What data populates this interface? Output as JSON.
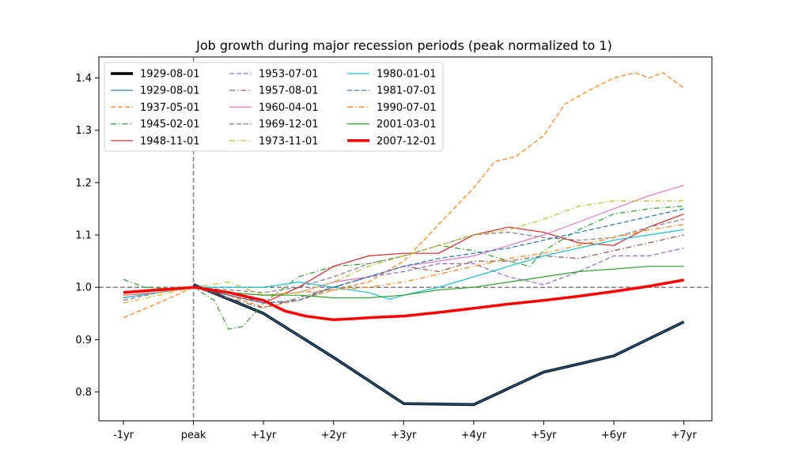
{
  "chart_data": {
    "type": "line",
    "title": "Job growth during major recession periods (peak normalized to 1)",
    "xlabel": "",
    "ylabel": "",
    "x_ticks": [
      {
        "value": -1,
        "label": "-1yr"
      },
      {
        "value": 0,
        "label": "peak"
      },
      {
        "value": 1,
        "label": "+1yr"
      },
      {
        "value": 2,
        "label": "+2yr"
      },
      {
        "value": 3,
        "label": "+3yr"
      },
      {
        "value": 4,
        "label": "+4yr"
      },
      {
        "value": 5,
        "label": "+5yr"
      },
      {
        "value": 6,
        "label": "+6yr"
      },
      {
        "value": 7,
        "label": "+7yr"
      }
    ],
    "y_ticks": [
      {
        "value": 0.8,
        "label": "0.8"
      },
      {
        "value": 0.9,
        "label": "0.9"
      },
      {
        "value": 1.0,
        "label": "1.0"
      },
      {
        "value": 1.1,
        "label": "1.1"
      },
      {
        "value": 1.2,
        "label": "1.2"
      },
      {
        "value": 1.3,
        "label": "1.3"
      },
      {
        "value": 1.4,
        "label": "1.4"
      }
    ],
    "xlim": [
      -1.35,
      7.4
    ],
    "ylim": [
      0.745,
      1.44
    ],
    "grid": false,
    "legend_position": "top-left",
    "reference_lines": {
      "horizontal": 1.0,
      "vertical": 0
    },
    "series": [
      {
        "name": "1929-08-01",
        "color": "#000000",
        "width": 3.5,
        "dash": "solid",
        "points": [
          [
            0,
            1.005
          ],
          [
            1,
            0.95
          ],
          [
            2,
            0.866
          ],
          [
            3,
            0.778
          ],
          [
            4,
            0.776
          ],
          [
            5,
            0.838
          ],
          [
            6,
            0.869
          ],
          [
            7,
            0.934
          ]
        ]
      },
      {
        "name": "1929-08-01",
        "color": "#1f77b4",
        "width": 1.2,
        "dash": "solid",
        "points": [
          [
            0,
            1.005
          ],
          [
            1,
            0.95
          ],
          [
            2,
            0.866
          ],
          [
            3,
            0.778
          ],
          [
            4,
            0.776
          ],
          [
            5,
            0.838
          ],
          [
            6,
            0.869
          ],
          [
            7,
            0.934
          ]
        ]
      },
      {
        "name": "1937-05-01",
        "color": "#ff7f0e",
        "width": 1.2,
        "dash": "dashed",
        "points": [
          [
            -1,
            0.942
          ],
          [
            -0.5,
            0.97
          ],
          [
            0,
            1.0
          ],
          [
            0.5,
            0.985
          ],
          [
            1,
            0.962
          ],
          [
            1.5,
            0.975
          ],
          [
            2,
            0.995
          ],
          [
            2.5,
            1.01
          ],
          [
            3,
            1.05
          ],
          [
            3.5,
            1.12
          ],
          [
            4,
            1.19
          ],
          [
            4.3,
            1.24
          ],
          [
            4.6,
            1.25
          ],
          [
            5,
            1.29
          ],
          [
            5.3,
            1.35
          ],
          [
            5.7,
            1.38
          ],
          [
            6,
            1.4
          ],
          [
            6.3,
            1.41
          ],
          [
            6.5,
            1.4
          ],
          [
            6.7,
            1.41
          ],
          [
            7,
            1.38
          ]
        ]
      },
      {
        "name": "1945-02-01",
        "color": "#2ca02c",
        "width": 1.2,
        "dash": "dashdot",
        "points": [
          [
            -1,
            1.015
          ],
          [
            -0.7,
            1.0
          ],
          [
            -0.3,
            0.997
          ],
          [
            0,
            1.0
          ],
          [
            0.3,
            0.975
          ],
          [
            0.5,
            0.92
          ],
          [
            0.7,
            0.925
          ],
          [
            1,
            0.97
          ],
          [
            1.5,
            1.02
          ],
          [
            2,
            1.04
          ],
          [
            2.5,
            1.045
          ],
          [
            3,
            1.06
          ],
          [
            3.5,
            1.08
          ],
          [
            4,
            1.07
          ],
          [
            4.5,
            1.05
          ],
          [
            4.8,
            1.04
          ],
          [
            5,
            1.07
          ],
          [
            5.5,
            1.11
          ],
          [
            6,
            1.14
          ],
          [
            6.5,
            1.15
          ],
          [
            7,
            1.155
          ]
        ]
      },
      {
        "name": "1948-11-01",
        "color": "#d62728",
        "width": 1.2,
        "dash": "solid",
        "points": [
          [
            -1,
            0.985
          ],
          [
            -0.5,
            0.99
          ],
          [
            0,
            1.0
          ],
          [
            0.5,
            0.985
          ],
          [
            1,
            0.97
          ],
          [
            1.5,
            1.0
          ],
          [
            2,
            1.04
          ],
          [
            2.5,
            1.06
          ],
          [
            3,
            1.065
          ],
          [
            3.5,
            1.065
          ],
          [
            4,
            1.1
          ],
          [
            4.5,
            1.115
          ],
          [
            5,
            1.105
          ],
          [
            5.5,
            1.085
          ],
          [
            6,
            1.08
          ],
          [
            6.5,
            1.115
          ],
          [
            7,
            1.14
          ]
        ]
      },
      {
        "name": "1953-07-01",
        "color": "#9467bd",
        "width": 1.2,
        "dash": "dashed",
        "points": [
          [
            -1,
            0.975
          ],
          [
            -0.5,
            0.99
          ],
          [
            0,
            1.0
          ],
          [
            0.5,
            0.99
          ],
          [
            1,
            0.97
          ],
          [
            1.5,
            0.975
          ],
          [
            2,
            1.0
          ],
          [
            2.5,
            1.02
          ],
          [
            3,
            1.03
          ],
          [
            3.5,
            1.045
          ],
          [
            4,
            1.045
          ],
          [
            4.5,
            1.02
          ],
          [
            5,
            1.005
          ],
          [
            5.5,
            1.03
          ],
          [
            6,
            1.06
          ],
          [
            6.5,
            1.06
          ],
          [
            7,
            1.075
          ]
        ]
      },
      {
        "name": "1957-08-01",
        "color": "#8c564b",
        "width": 1.2,
        "dash": "dashdot",
        "points": [
          [
            -1,
            0.98
          ],
          [
            -0.5,
            0.99
          ],
          [
            0,
            1.0
          ],
          [
            0.5,
            0.98
          ],
          [
            1,
            0.96
          ],
          [
            1.5,
            0.98
          ],
          [
            2,
            1.0
          ],
          [
            2.5,
            1.02
          ],
          [
            3,
            1.04
          ],
          [
            3.5,
            1.03
          ],
          [
            4,
            1.05
          ],
          [
            4.5,
            1.05
          ],
          [
            5,
            1.06
          ],
          [
            5.5,
            1.055
          ],
          [
            6,
            1.07
          ],
          [
            6.5,
            1.085
          ],
          [
            7,
            1.1
          ]
        ]
      },
      {
        "name": "1960-04-01",
        "color": "#e377c2",
        "width": 1.2,
        "dash": "solid",
        "points": [
          [
            -1,
            0.985
          ],
          [
            -0.5,
            0.99
          ],
          [
            0,
            1.0
          ],
          [
            0.5,
            0.99
          ],
          [
            1,
            0.985
          ],
          [
            1.5,
            0.99
          ],
          [
            2,
            1.01
          ],
          [
            2.5,
            1.02
          ],
          [
            3,
            1.04
          ],
          [
            3.5,
            1.05
          ],
          [
            4,
            1.06
          ],
          [
            4.5,
            1.08
          ],
          [
            5,
            1.1
          ],
          [
            5.5,
            1.125
          ],
          [
            6,
            1.15
          ],
          [
            6.5,
            1.175
          ],
          [
            7,
            1.195
          ]
        ]
      },
      {
        "name": "1969-12-01",
        "color": "#7f7f7f",
        "width": 1.2,
        "dash": "dashed",
        "points": [
          [
            -1,
            0.98
          ],
          [
            -0.5,
            0.99
          ],
          [
            0,
            1.0
          ],
          [
            0.5,
            0.995
          ],
          [
            1,
            0.99
          ],
          [
            1.5,
            1.0
          ],
          [
            2,
            1.02
          ],
          [
            2.5,
            1.045
          ],
          [
            3,
            1.06
          ],
          [
            3.5,
            1.08
          ],
          [
            4,
            1.1
          ],
          [
            4.5,
            1.105
          ],
          [
            5,
            1.095
          ],
          [
            5.5,
            1.09
          ],
          [
            6,
            1.095
          ],
          [
            6.5,
            1.115
          ],
          [
            7,
            1.13
          ]
        ]
      },
      {
        "name": "1973-11-01",
        "color": "#bcbd22",
        "width": 1.2,
        "dash": "dashdot",
        "points": [
          [
            -1,
            0.97
          ],
          [
            -0.5,
            0.985
          ],
          [
            0,
            1.0
          ],
          [
            0.5,
            1.01
          ],
          [
            1,
            0.985
          ],
          [
            1.5,
            0.99
          ],
          [
            2,
            1.01
          ],
          [
            2.5,
            1.04
          ],
          [
            3,
            1.06
          ],
          [
            3.5,
            1.08
          ],
          [
            4,
            1.1
          ],
          [
            4.5,
            1.11
          ],
          [
            5,
            1.13
          ],
          [
            5.5,
            1.155
          ],
          [
            6,
            1.165
          ],
          [
            6.5,
            1.165
          ],
          [
            7,
            1.165
          ]
        ]
      },
      {
        "name": "1980-01-01",
        "color": "#17becf",
        "width": 1.2,
        "dash": "solid",
        "points": [
          [
            -1,
            0.98
          ],
          [
            -0.5,
            0.99
          ],
          [
            0,
            1.0
          ],
          [
            0.5,
            1.0
          ],
          [
            1,
            1.0
          ],
          [
            1.5,
            1.01
          ],
          [
            2,
            1.0
          ],
          [
            2.5,
            0.99
          ],
          [
            2.8,
            0.977
          ],
          [
            3,
            0.985
          ],
          [
            3.5,
            1.0
          ],
          [
            4,
            1.02
          ],
          [
            4.5,
            1.04
          ],
          [
            5,
            1.06
          ],
          [
            5.5,
            1.075
          ],
          [
            6,
            1.09
          ],
          [
            6.5,
            1.1
          ],
          [
            7,
            1.11
          ]
        ]
      },
      {
        "name": "1981-07-01",
        "color": "#1f77b4",
        "width": 1.2,
        "dash": "dashed",
        "points": [
          [
            -1,
            0.99
          ],
          [
            -0.5,
            0.995
          ],
          [
            0,
            1.0
          ],
          [
            0.5,
            0.985
          ],
          [
            1,
            0.97
          ],
          [
            1.5,
            0.975
          ],
          [
            2,
            1.0
          ],
          [
            2.5,
            1.02
          ],
          [
            3,
            1.04
          ],
          [
            3.5,
            1.055
          ],
          [
            4,
            1.065
          ],
          [
            4.5,
            1.075
          ],
          [
            5,
            1.09
          ],
          [
            5.5,
            1.105
          ],
          [
            6,
            1.12
          ],
          [
            6.5,
            1.135
          ],
          [
            7,
            1.15
          ]
        ]
      },
      {
        "name": "1990-07-01",
        "color": "#ff7f0e",
        "width": 1.2,
        "dash": "dashdot",
        "points": [
          [
            -1,
            0.985
          ],
          [
            -0.5,
            0.99
          ],
          [
            0,
            1.0
          ],
          [
            0.5,
            0.99
          ],
          [
            1,
            0.985
          ],
          [
            1.5,
            0.99
          ],
          [
            2,
            0.995
          ],
          [
            2.5,
            1.0
          ],
          [
            3,
            1.01
          ],
          [
            3.5,
            1.025
          ],
          [
            4,
            1.04
          ],
          [
            4.5,
            1.055
          ],
          [
            5,
            1.065
          ],
          [
            5.5,
            1.08
          ],
          [
            6,
            1.095
          ],
          [
            6.5,
            1.11
          ],
          [
            7,
            1.12
          ]
        ]
      },
      {
        "name": "2001-03-01",
        "color": "#2ca02c",
        "width": 1.2,
        "dash": "solid",
        "points": [
          [
            -1,
            0.99
          ],
          [
            -0.5,
            0.995
          ],
          [
            0,
            1.0
          ],
          [
            0.5,
            0.99
          ],
          [
            1,
            0.985
          ],
          [
            1.5,
            0.985
          ],
          [
            2,
            0.98
          ],
          [
            2.5,
            0.98
          ],
          [
            3,
            0.985
          ],
          [
            3.5,
            0.995
          ],
          [
            4,
            1.0
          ],
          [
            4.5,
            1.01
          ],
          [
            5,
            1.02
          ],
          [
            5.5,
            1.03
          ],
          [
            6,
            1.035
          ],
          [
            6.5,
            1.04
          ],
          [
            7,
            1.04
          ]
        ]
      },
      {
        "name": "2007-12-01",
        "color": "#ff0000",
        "width": 3.5,
        "dash": "solid",
        "points": [
          [
            -1,
            0.99
          ],
          [
            -0.5,
            0.995
          ],
          [
            0,
            1.0
          ],
          [
            0.5,
            0.99
          ],
          [
            1,
            0.975
          ],
          [
            1.3,
            0.955
          ],
          [
            1.6,
            0.945
          ],
          [
            2,
            0.938
          ],
          [
            2.3,
            0.94
          ],
          [
            2.5,
            0.942
          ],
          [
            3,
            0.945
          ],
          [
            3.5,
            0.952
          ],
          [
            4,
            0.96
          ],
          [
            4.5,
            0.968
          ],
          [
            5,
            0.975
          ],
          [
            5.5,
            0.983
          ],
          [
            6,
            0.992
          ],
          [
            6.5,
            1.002
          ],
          [
            7,
            1.014
          ]
        ]
      }
    ]
  }
}
